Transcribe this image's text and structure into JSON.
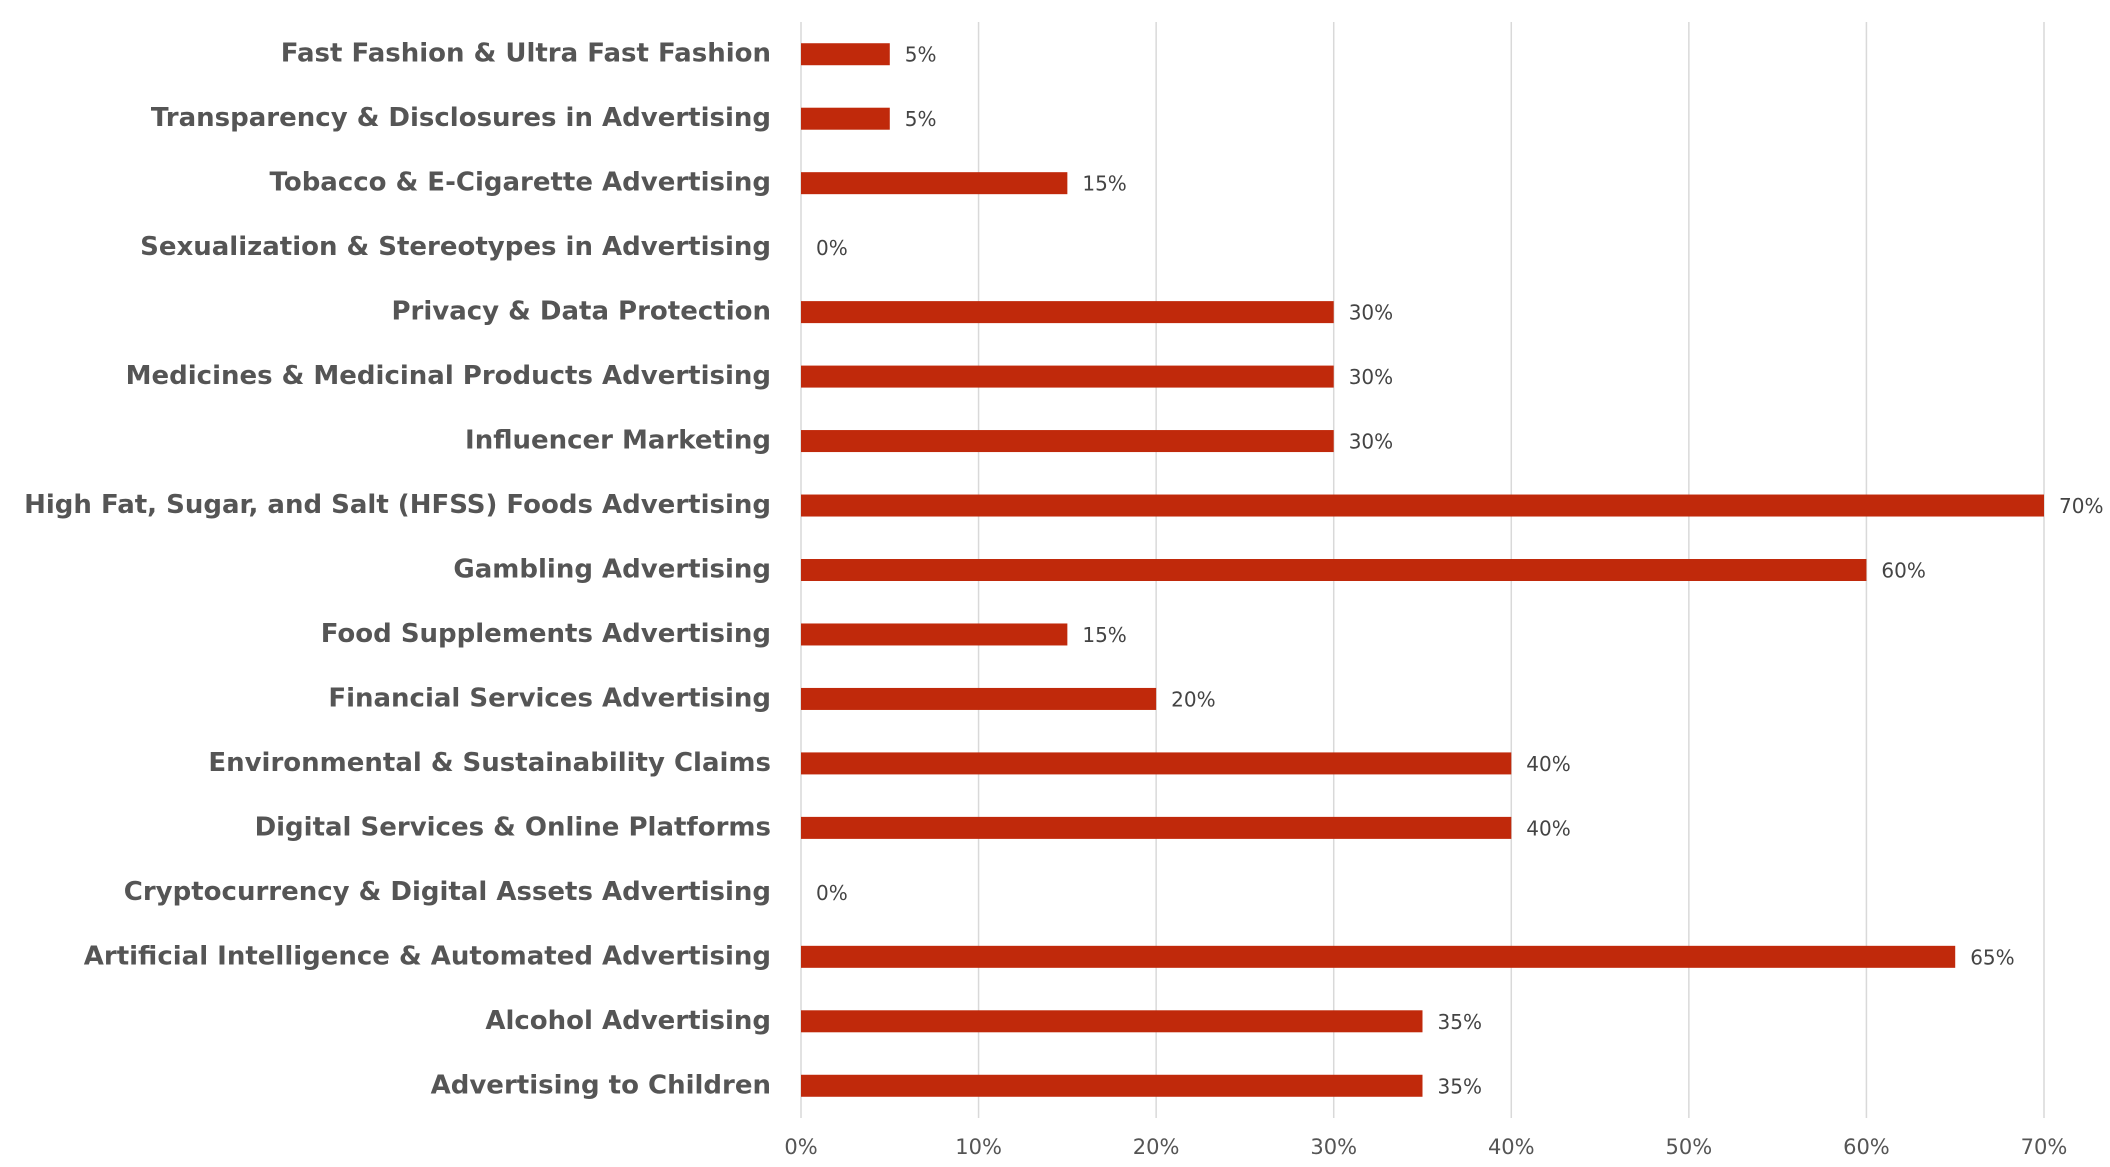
{
  "chart_data": {
    "type": "bar",
    "orientation": "horizontal",
    "categories": [
      "Fast Fashion & Ultra Fast Fashion",
      "Transparency & Disclosures in Advertising",
      "Tobacco & E-Cigarette Advertising",
      "Sexualization & Stereotypes in Advertising",
      "Privacy & Data Protection",
      "Medicines & Medicinal Products Advertising",
      "Influencer Marketing",
      "High Fat, Sugar, and Salt (HFSS) Foods Advertising",
      "Gambling Advertising",
      "Food Supplements Advertising",
      "Financial Services Advertising",
      "Environmental & Sustainability Claims",
      "Digital Services & Online Platforms",
      "Cryptocurrency & Digital Assets Advertising",
      "Artificial Intelligence & Automated Advertising",
      "Alcohol Advertising",
      "Advertising to Children"
    ],
    "values": [
      5,
      5,
      15,
      0,
      30,
      30,
      30,
      70,
      60,
      15,
      20,
      40,
      40,
      0,
      65,
      35,
      35
    ],
    "value_labels": [
      "5%",
      "5%",
      "15%",
      "0%",
      "30%",
      "30%",
      "30%",
      "70%",
      "60%",
      "15%",
      "20%",
      "40%",
      "40%",
      "0%",
      "65%",
      "35%",
      "35%"
    ],
    "color": "#c0290b",
    "xlim": [
      0,
      70
    ],
    "xticks": [
      {
        "value": 0,
        "label": "0%"
      },
      {
        "value": 10,
        "label": "10%"
      },
      {
        "value": 20,
        "label": "20%"
      },
      {
        "value": 30,
        "label": "30%"
      },
      {
        "value": 40,
        "label": "40%"
      },
      {
        "value": 50,
        "label": "50%"
      },
      {
        "value": 60,
        "label": "60%"
      },
      {
        "value": 70,
        "label": "70%"
      }
    ],
    "grid": true
  }
}
